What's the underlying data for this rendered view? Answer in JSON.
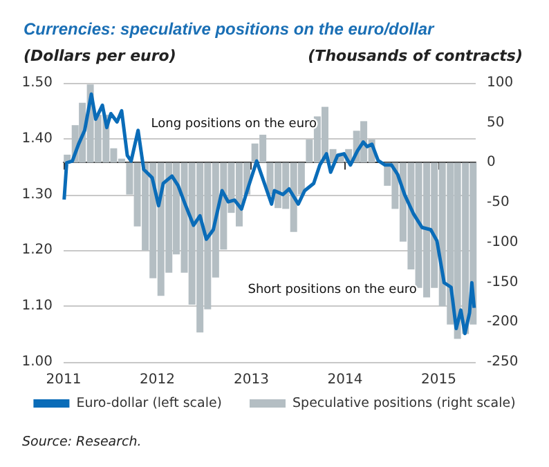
{
  "chart_data": {
    "type": "bar",
    "title": "Currencies: speculative positions on the euro/dollar",
    "ylabel": "(Dollars per euro)",
    "y2label": "(Thousands of contracts)",
    "annotations": [
      "Long positions on the euro",
      "Short positions on the euro",
      "Source: Research."
    ],
    "xlim": [
      "2011-01-01",
      "2015-05-25"
    ],
    "xticks": [
      "2011",
      "2012",
      "2013",
      "2014",
      "2015"
    ],
    "ylim": [
      1,
      1.5
    ],
    "yticks": [
      {
        "value": 1,
        "label": "1.00"
      },
      {
        "value": 1.1,
        "label": "1.10"
      },
      {
        "value": 1.2,
        "label": "1.20"
      },
      {
        "value": 1.3,
        "label": "1.30"
      },
      {
        "value": 1.4,
        "label": "1.40"
      },
      {
        "value": 1.5,
        "label": "1.50"
      }
    ],
    "y2lim": [
      -250,
      100
    ],
    "y2ticks": [
      -250,
      -200,
      -150,
      -100,
      -50,
      0,
      50,
      100
    ],
    "grid": "y",
    "legend": "bottom",
    "series": [
      {
        "name": "Euro-dollar (left scale)",
        "type": "line",
        "color": "#0a6cb8",
        "marker": "none",
        "x": [
          "2011-01-03",
          "2011-01-13",
          "2011-02-04",
          "2011-02-28",
          "2011-03-24",
          "2011-04-19",
          "2011-05-06",
          "2011-06-01",
          "2011-06-18",
          "2011-07-04",
          "2011-07-28",
          "2011-08-15",
          "2011-09-06",
          "2011-09-21",
          "2011-10-18",
          "2011-11-09",
          "2011-12-12",
          "2012-01-06",
          "2012-01-24",
          "2012-02-27",
          "2012-03-22",
          "2012-04-18",
          "2012-05-21",
          "2012-06-15",
          "2012-07-10",
          "2012-08-06",
          "2012-09-09",
          "2012-10-03",
          "2012-10-28",
          "2012-11-24",
          "2012-12-18",
          "2013-01-22",
          "2013-02-18",
          "2013-03-21",
          "2013-04-01",
          "2013-05-04",
          "2013-05-28",
          "2013-07-03",
          "2013-07-28",
          "2013-09-01",
          "2013-09-25",
          "2013-10-21",
          "2013-11-06",
          "2013-12-03",
          "2013-12-28",
          "2014-01-22",
          "2014-02-18",
          "2014-03-13",
          "2014-03-28",
          "2014-04-16",
          "2014-05-10",
          "2014-06-06",
          "2014-07-01",
          "2014-07-25",
          "2014-08-21",
          "2014-09-24",
          "2014-10-28",
          "2014-12-01",
          "2014-12-25",
          "2015-01-22",
          "2015-02-18",
          "2015-03-10",
          "2015-03-28",
          "2015-04-13",
          "2015-05-01",
          "2015-05-10",
          "2015-05-19"
        ],
        "values": [
          1.291,
          1.357,
          1.36,
          1.39,
          1.415,
          1.48,
          1.435,
          1.46,
          1.42,
          1.445,
          1.43,
          1.45,
          1.37,
          1.36,
          1.415,
          1.345,
          1.33,
          1.28,
          1.32,
          1.333,
          1.316,
          1.283,
          1.245,
          1.262,
          1.22,
          1.237,
          1.307,
          1.287,
          1.29,
          1.274,
          1.31,
          1.36,
          1.324,
          1.283,
          1.307,
          1.3,
          1.31,
          1.283,
          1.307,
          1.32,
          1.353,
          1.373,
          1.34,
          1.37,
          1.373,
          1.353,
          1.378,
          1.394,
          1.386,
          1.39,
          1.361,
          1.353,
          1.353,
          1.336,
          1.3,
          1.266,
          1.241,
          1.237,
          1.217,
          1.142,
          1.134,
          1.06,
          1.093,
          1.051,
          1.088,
          1.142,
          1.097
        ]
      },
      {
        "name": "Speculative positions (right scale)",
        "axis": "y2",
        "color": "#b4bec3",
        "x": [
          "2011-01-15",
          "2011-02-15",
          "2011-03-15",
          "2011-04-15",
          "2011-05-15",
          "2011-06-15",
          "2011-07-15",
          "2011-08-15",
          "2011-09-15",
          "2011-10-15",
          "2011-11-15",
          "2011-12-15",
          "2012-01-15",
          "2012-02-15",
          "2012-03-15",
          "2012-04-15",
          "2012-05-15",
          "2012-06-15",
          "2012-07-15",
          "2012-08-15",
          "2012-09-15",
          "2012-10-15",
          "2012-11-15",
          "2012-12-15",
          "2013-01-15",
          "2013-02-15",
          "2013-03-15",
          "2013-04-15",
          "2013-05-15",
          "2013-06-15",
          "2013-07-15",
          "2013-08-15",
          "2013-09-15",
          "2013-10-15",
          "2013-11-15",
          "2013-12-15",
          "2014-01-15",
          "2014-02-15",
          "2014-03-15",
          "2014-04-15",
          "2014-05-15",
          "2014-06-15",
          "2014-07-15",
          "2014-08-15",
          "2014-09-15",
          "2014-10-15",
          "2014-11-15",
          "2014-12-15",
          "2015-01-15",
          "2015-02-15",
          "2015-03-15",
          "2015-04-15",
          "2015-05-15"
        ],
        "values": [
          10,
          47,
          75,
          98,
          60,
          60,
          18,
          5,
          -40,
          -80,
          -110,
          -145,
          -167,
          -138,
          -115,
          -138,
          -178,
          -213,
          -184,
          -144,
          -109,
          -63,
          -80,
          -40,
          24,
          35,
          -40,
          -57,
          -58,
          -87,
          -40,
          29,
          58,
          70,
          17,
          12,
          17,
          40,
          52,
          29,
          0,
          -29,
          -58,
          -99,
          -134,
          -157,
          -169,
          -157,
          -180,
          -203,
          -221,
          -215,
          -203
        ]
      }
    ]
  }
}
